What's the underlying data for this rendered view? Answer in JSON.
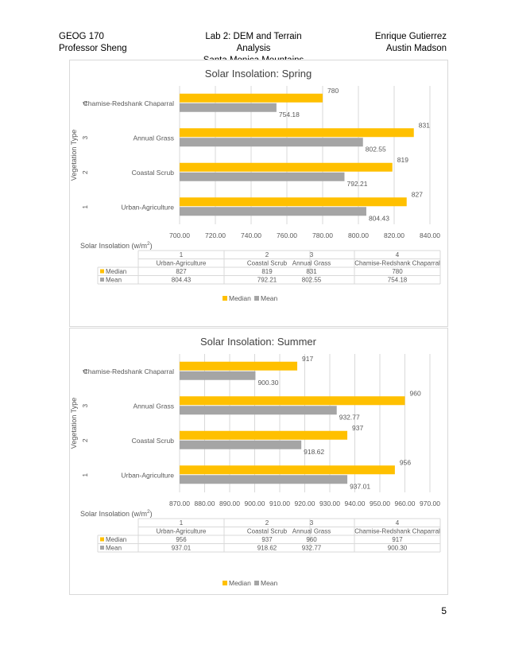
{
  "header": {
    "course": "GEOG 170",
    "professor": "Professor Sheng",
    "lab_title": "Lab 2: DEM and Terrain Analysis",
    "location": "Santa Monica Mountains",
    "author1": "Enrique Gutierrez",
    "author2": "Austin Madson"
  },
  "page_number": "5",
  "colors": {
    "median": "#FFC000",
    "mean": "#A5A5A5",
    "grid": "#D9D9D9",
    "text": "#595959"
  },
  "chart_data": [
    {
      "type": "bar",
      "orientation": "horizontal",
      "title": "Solar Insolation: Spring",
      "ylabel": "Vegetation Type",
      "xlabel": "Solar Insolation (w/m²)",
      "xlabel_text": "Solar Insolation (w/m",
      "xlabel_sup": "2",
      "xlabel_close": ")",
      "xlim": [
        700,
        840
      ],
      "ticks": [
        700,
        720,
        740,
        760,
        780,
        800,
        820,
        840
      ],
      "tick_labels": [
        "700.00",
        "720.00",
        "740.00",
        "760.00",
        "780.00",
        "800.00",
        "820.00",
        "840.00"
      ],
      "category_numbers": [
        "1",
        "2",
        "3",
        "4"
      ],
      "categories": [
        "Urban-Agriculture",
        "Coastal Scrub",
        "Annual Grass",
        "Chamise-Redshank Chaparral"
      ],
      "series": [
        {
          "name": "Median",
          "values": [
            827,
            819,
            831,
            780
          ],
          "labels": [
            "827",
            "819",
            "831",
            "780"
          ]
        },
        {
          "name": "Mean",
          "values": [
            804.43,
            792.21,
            802.55,
            754.18
          ],
          "labels": [
            "804.43",
            "792.21",
            "802.55",
            "754.18"
          ]
        }
      ],
      "legend": [
        "Median",
        "Mean"
      ],
      "legend_position": "bottom"
    },
    {
      "type": "bar",
      "orientation": "horizontal",
      "title": "Solar Insolation: Summer",
      "ylabel": "Vegetation Type",
      "xlabel": "Solar Insolation (w/m²)",
      "xlabel_text": "Solar Insolation (w/m",
      "xlabel_sup": "2",
      "xlabel_close": ")",
      "xlim": [
        870,
        970
      ],
      "ticks": [
        870,
        880,
        890,
        900,
        910,
        920,
        930,
        940,
        950,
        960,
        970
      ],
      "tick_labels": [
        "870.00",
        "880.00",
        "890.00",
        "900.00",
        "910.00",
        "920.00",
        "930.00",
        "940.00",
        "950.00",
        "960.00",
        "970.00"
      ],
      "category_numbers": [
        "1",
        "2",
        "3",
        "4"
      ],
      "categories": [
        "Urban-Agriculture",
        "Coastal Scrub",
        "Annual Grass",
        "Chamise-Redshank Chaparral"
      ],
      "series": [
        {
          "name": "Median",
          "values": [
            956,
            937,
            960,
            917
          ],
          "labels": [
            "956",
            "937",
            "960",
            "917"
          ]
        },
        {
          "name": "Mean",
          "values": [
            937.01,
            918.62,
            932.77,
            900.3
          ],
          "labels": [
            "937.01",
            "918.62",
            "932.77",
            "900.30"
          ]
        }
      ],
      "legend": [
        "Median",
        "Mean"
      ],
      "legend_position": "bottom"
    }
  ]
}
